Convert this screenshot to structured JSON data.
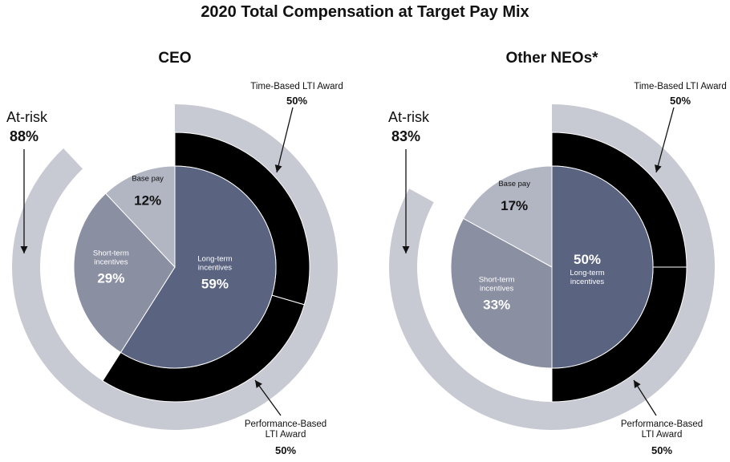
{
  "chart_data": [
    {
      "type": "pie",
      "panel_title": "CEO",
      "slices": [
        {
          "label_lines": [
            "Base pay"
          ],
          "value": 12,
          "value_label": "12%",
          "color": "#b2b5c2"
        },
        {
          "label_lines": [
            "Short-term",
            "incentives"
          ],
          "value": 29,
          "value_label": "29%",
          "color": "#8a8fa2"
        },
        {
          "label_lines": [
            "Long-term",
            "incentives"
          ],
          "value": 59,
          "value_label": "59%",
          "color": "#5a6380"
        }
      ],
      "lti_split": [
        {
          "label_lines": [
            "Time-Based LTI Award"
          ],
          "value": 50,
          "value_label": "50%",
          "color": "#000000"
        },
        {
          "label_lines": [
            "Performance-Based",
            "LTI Award"
          ],
          "value": 50,
          "value_label": "50%",
          "color": "#000000"
        }
      ],
      "at_risk": {
        "label": "At-risk",
        "value": 88,
        "value_label": "88%",
        "color": "#c8cad3"
      }
    },
    {
      "type": "pie",
      "panel_title": "Other NEOs*",
      "slices": [
        {
          "label_lines": [
            "Base pay"
          ],
          "value": 17,
          "value_label": "17%",
          "color": "#b2b5c2"
        },
        {
          "label_lines": [
            "Short-term",
            "incentives"
          ],
          "value": 33,
          "value_label": "33%",
          "color": "#8a8fa2"
        },
        {
          "label_lines": [
            "Long-term",
            "incentives"
          ],
          "value": 50,
          "value_label": "50%",
          "color": "#5a6380"
        }
      ],
      "lti_split": [
        {
          "label_lines": [
            "Time-Based LTI Award"
          ],
          "value": 50,
          "value_label": "50%",
          "color": "#000000"
        },
        {
          "label_lines": [
            "Performance-Based",
            "LTI Award"
          ],
          "value": 50,
          "value_label": "50%",
          "color": "#000000"
        }
      ],
      "at_risk": {
        "label": "At-risk",
        "value": 83,
        "value_label": "83%",
        "color": "#c8cad3"
      }
    }
  ],
  "title": "2020 Total Compensation at Target Pay Mix"
}
